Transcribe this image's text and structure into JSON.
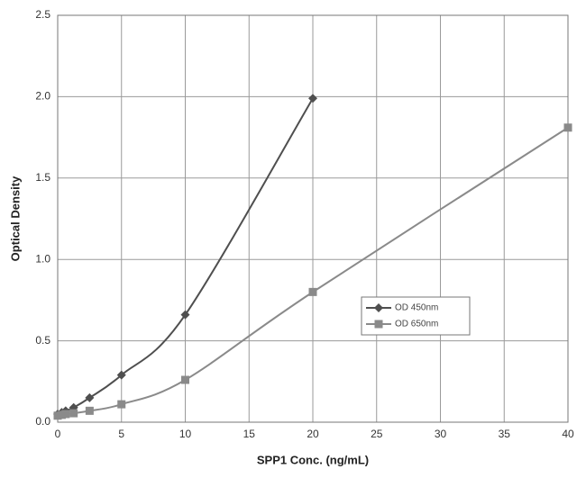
{
  "chart_data": {
    "type": "line",
    "x_label": "SPP1 Conc. (ng/mL)",
    "y_label": "Optical Density",
    "x": [
      0,
      0.3125,
      0.625,
      1.25,
      2.5,
      5,
      10,
      20,
      40
    ],
    "series": [
      {
        "name": "OD 450nm",
        "color": "#4f4f4f",
        "marker": "diamond",
        "values": [
          0.05,
          0.06,
          0.07,
          0.09,
          0.15,
          0.29,
          0.66,
          1.99,
          null
        ]
      },
      {
        "name": "OD 650nm",
        "color": "#8a8a8a",
        "marker": "square",
        "values": [
          0.04,
          0.045,
          0.05,
          0.055,
          0.07,
          0.11,
          0.26,
          0.8,
          1.81
        ]
      }
    ],
    "xlim": [
      0,
      40
    ],
    "xticks": [
      0,
      5,
      10,
      15,
      20,
      25,
      30,
      35,
      40
    ],
    "ylim": [
      0,
      2.5
    ],
    "yticks": [
      {
        "value": 0,
        "label": "0.0"
      },
      0.5,
      {
        "value": 1,
        "label": "1.0"
      },
      1.5,
      {
        "value": 2,
        "label": "2.0"
      },
      2.5
    ],
    "grid": true
  }
}
